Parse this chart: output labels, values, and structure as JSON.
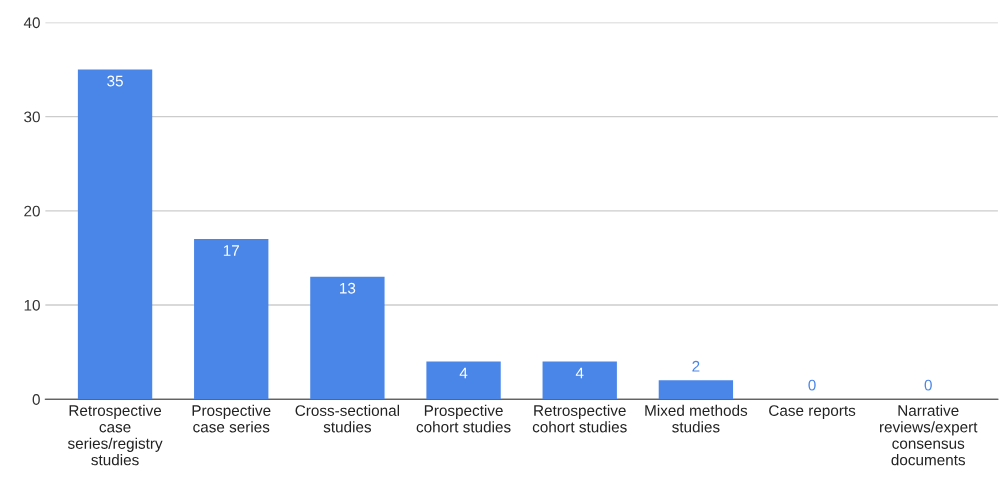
{
  "chart_data": {
    "type": "bar",
    "categories": [
      "Retrospective case series/registry studies",
      "Prospective case series",
      "Cross-sectional studies",
      "Prospective cohort studies",
      "Retrospective cohort studies",
      "Mixed methods studies",
      "Case reports",
      "Narrative reviews/expert consensus documents"
    ],
    "values": [
      35,
      17,
      13,
      4,
      4,
      2,
      0,
      0
    ],
    "color": "#4a86e8",
    "ylim": [
      0,
      40
    ],
    "yticks": [
      0,
      10,
      20,
      30,
      40
    ],
    "grid": "y",
    "data_labels": true
  }
}
